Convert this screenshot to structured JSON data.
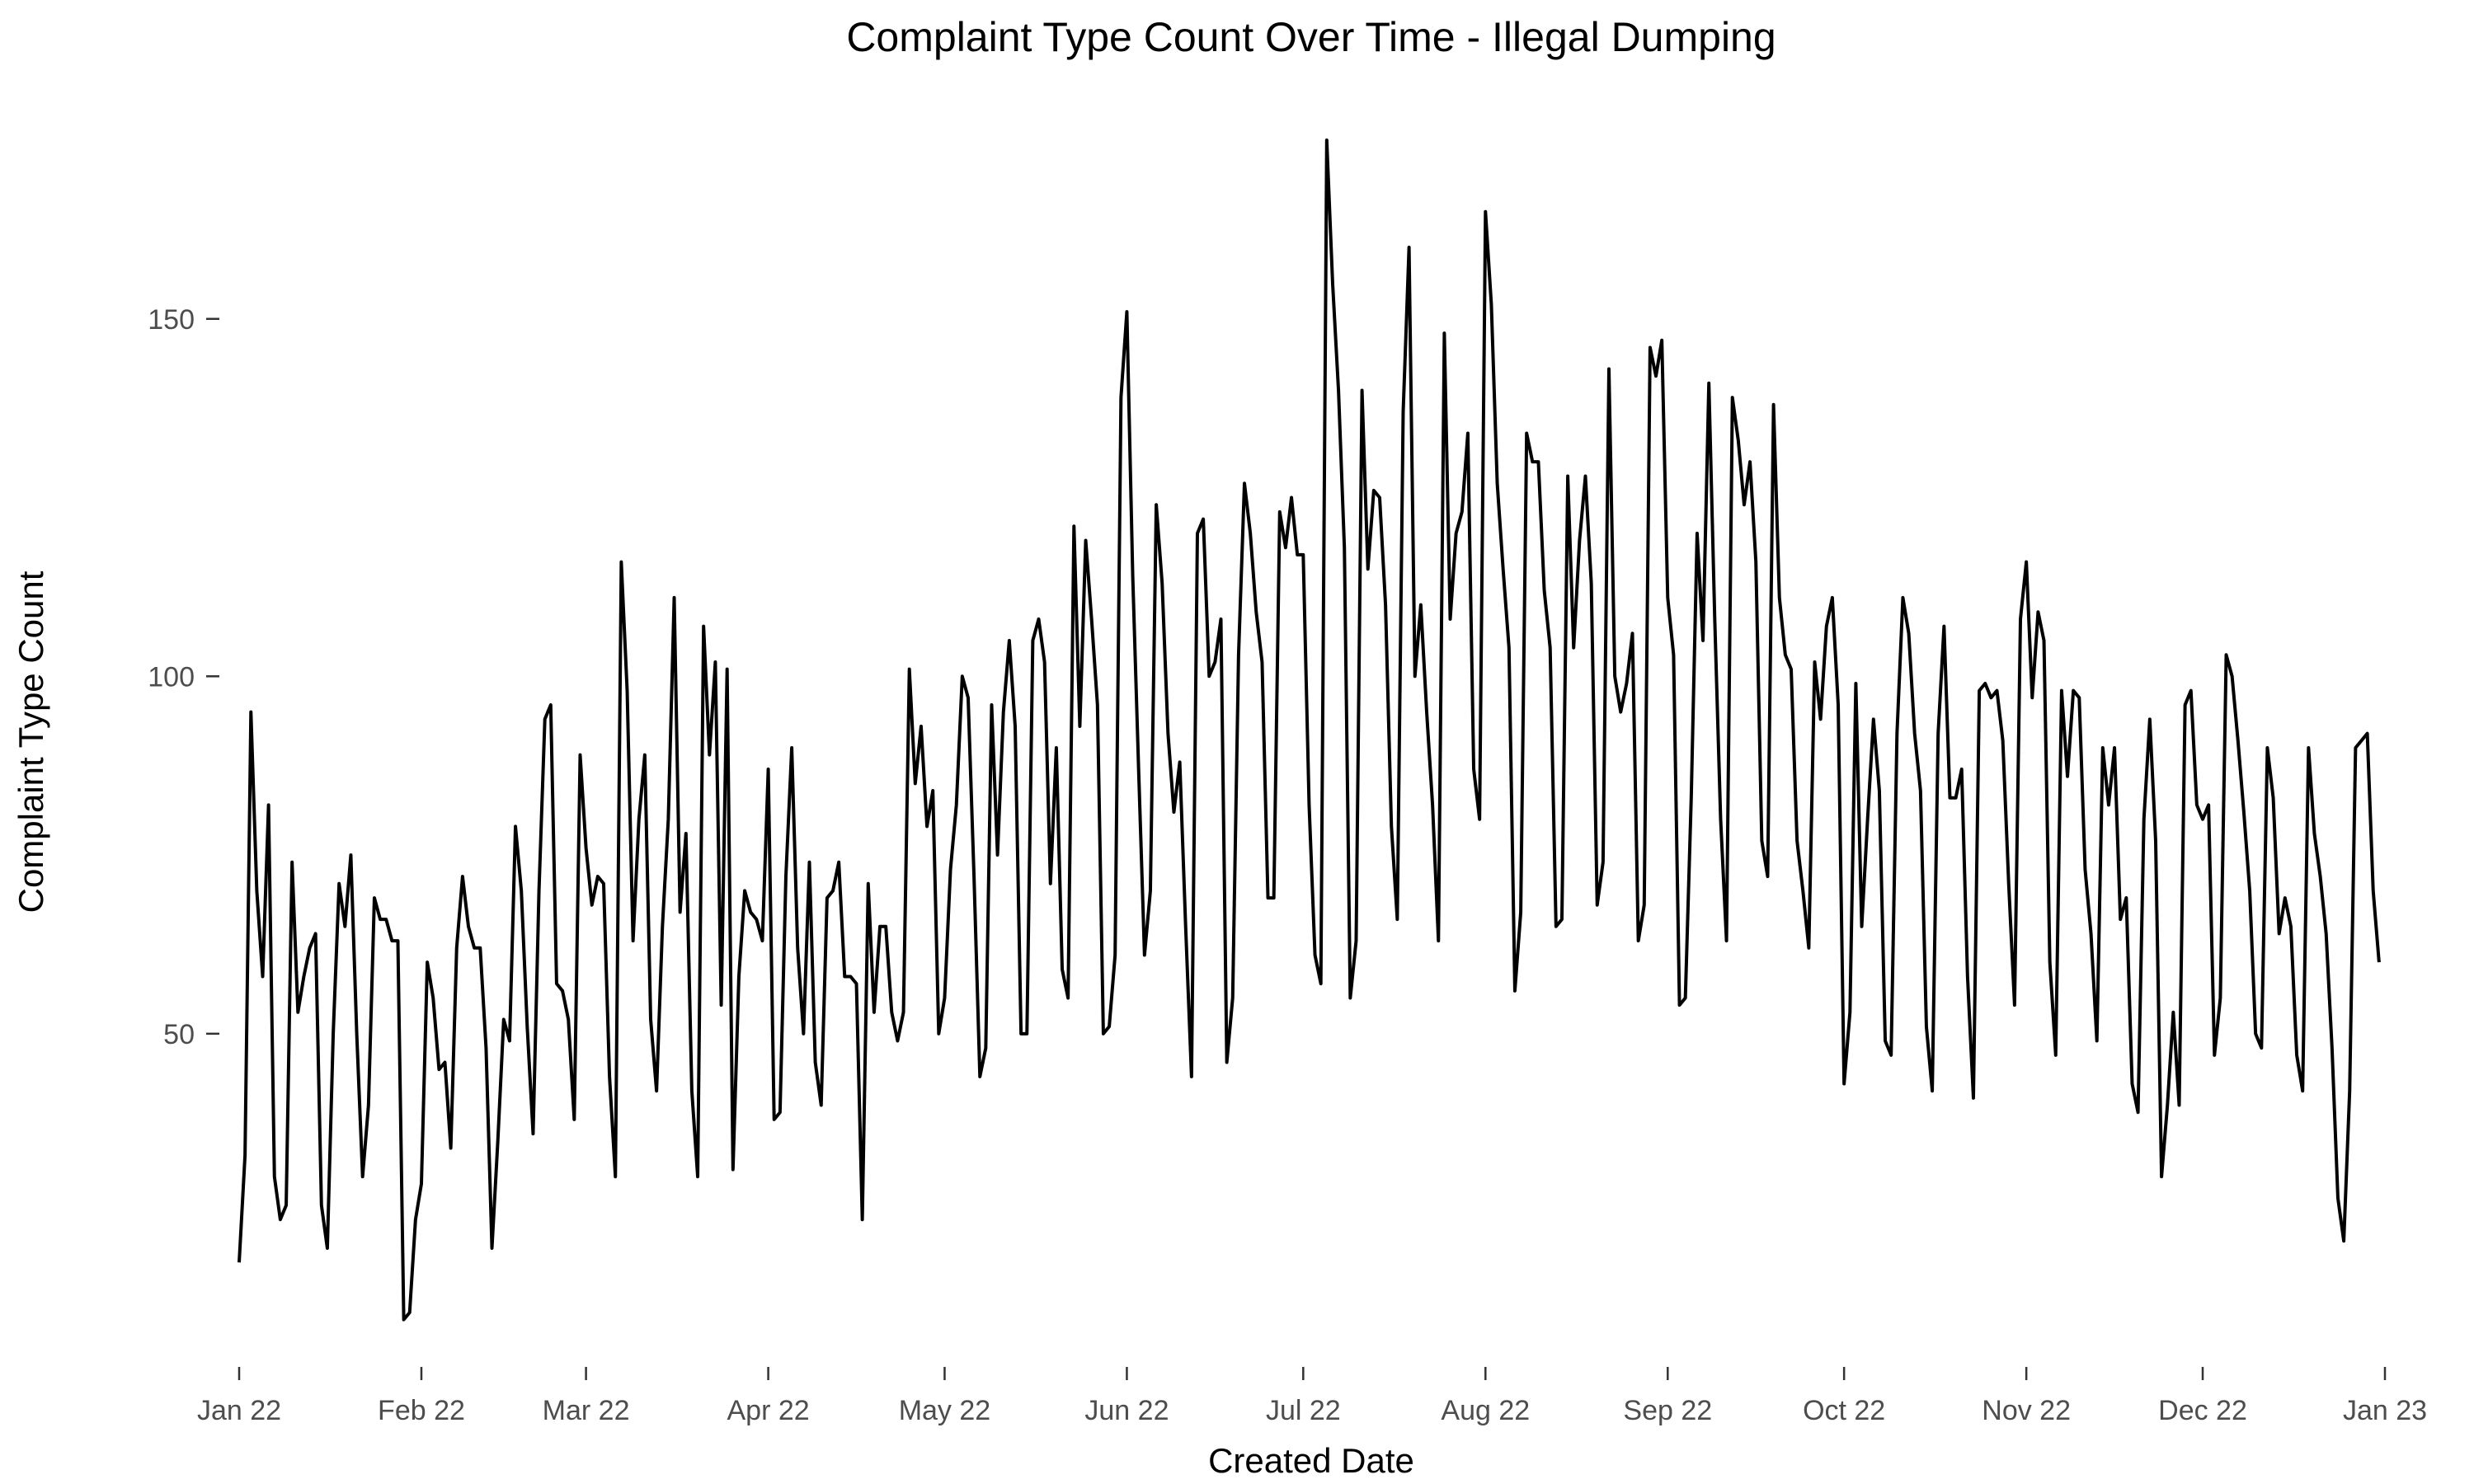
{
  "chart_data": {
    "type": "line",
    "title": "Complaint Type Count Over Time - Illegal Dumping",
    "xlabel": "Created Date",
    "ylabel": "Complaint Type Count",
    "x_range": [
      "2022-01-01",
      "2023-01-01"
    ],
    "ylim": [
      8,
      175
    ],
    "y_ticks": [
      50,
      100,
      150
    ],
    "x_ticks": [
      {
        "date": "2022-01-01",
        "label": "Jan 22"
      },
      {
        "date": "2022-02-01",
        "label": "Feb 22"
      },
      {
        "date": "2022-03-01",
        "label": "Mar 22"
      },
      {
        "date": "2022-04-01",
        "label": "Apr 22"
      },
      {
        "date": "2022-05-01",
        "label": "May 22"
      },
      {
        "date": "2022-06-01",
        "label": "Jun 22"
      },
      {
        "date": "2022-07-01",
        "label": "Jul 22"
      },
      {
        "date": "2022-08-01",
        "label": "Aug 22"
      },
      {
        "date": "2022-09-01",
        "label": "Sep 22"
      },
      {
        "date": "2022-10-01",
        "label": "Oct 22"
      },
      {
        "date": "2022-11-01",
        "label": "Nov 22"
      },
      {
        "date": "2022-12-01",
        "label": "Dec 22"
      },
      {
        "date": "2023-01-01",
        "label": "Jan 23"
      }
    ],
    "grid": false,
    "series": [
      {
        "start_date": "2022-01-01",
        "values": [
          18,
          33,
          95,
          70,
          58,
          82,
          30,
          24,
          26,
          74,
          53,
          58,
          62,
          64,
          26,
          20,
          50,
          71,
          65,
          75,
          50,
          30,
          40,
          69,
          66,
          66,
          63,
          63,
          10,
          11,
          24,
          29,
          60,
          55,
          45,
          46,
          34,
          62,
          72,
          65,
          62,
          62,
          48,
          20,
          35,
          52,
          49,
          79,
          70,
          51,
          36,
          70,
          94,
          96,
          57,
          56,
          52,
          38,
          89,
          76,
          68,
          72,
          71,
          44,
          30,
          116,
          98,
          63,
          80,
          89,
          52,
          42,
          65,
          80,
          111,
          67,
          78,
          42,
          30,
          107,
          89,
          102,
          54,
          101,
          31,
          58,
          70,
          67,
          66,
          63,
          87,
          38,
          39,
          72,
          90,
          62,
          50,
          74,
          46,
          40,
          69,
          70,
          74,
          58,
          58,
          57,
          24,
          71,
          53,
          65,
          65,
          53,
          49,
          53,
          101,
          85,
          93,
          79,
          84,
          50,
          55,
          73,
          82,
          100,
          97,
          72,
          44,
          48,
          96,
          75,
          95,
          105,
          93,
          50,
          50,
          105,
          108,
          102,
          71,
          90,
          59,
          55,
          121,
          93,
          119,
          108,
          96,
          50,
          51,
          61,
          139,
          151,
          114,
          87,
          61,
          70,
          124,
          113,
          92,
          81,
          88,
          65,
          44,
          120,
          122,
          100,
          102,
          108,
          46,
          55,
          103,
          127,
          120,
          109,
          102,
          69,
          69,
          123,
          118,
          125,
          117,
          117,
          82,
          61,
          57,
          175,
          155,
          140,
          118,
          55,
          63,
          140,
          115,
          126,
          125,
          110,
          79,
          66,
          137,
          160,
          100,
          110,
          95,
          82,
          63,
          148,
          108,
          120,
          123,
          134,
          87,
          80,
          165,
          152,
          127,
          115,
          104,
          56,
          67,
          134,
          130,
          130,
          112,
          104,
          65,
          66,
          128,
          104,
          119,
          128,
          113,
          68,
          74,
          143,
          100,
          95,
          99,
          106,
          63,
          68,
          146,
          142,
          147,
          111,
          103,
          54,
          55,
          83,
          120,
          105,
          141,
          108,
          80,
          63,
          139,
          133,
          124,
          130,
          116,
          77,
          72,
          138,
          111,
          103,
          101,
          77,
          70,
          62,
          102,
          94,
          107,
          111,
          96,
          43,
          53,
          99,
          65,
          80,
          94,
          84,
          49,
          47,
          92,
          111,
          106,
          92,
          84,
          51,
          42,
          92,
          107,
          83,
          83,
          87,
          58,
          41,
          98,
          99,
          97,
          98,
          91,
          71,
          54,
          108,
          116,
          97,
          109,
          105,
          60,
          47,
          98,
          86,
          98,
          97,
          73,
          64,
          49,
          90,
          82,
          90,
          66,
          69,
          43,
          39,
          80,
          94,
          77,
          30,
          40,
          53,
          40,
          96,
          98,
          82,
          80,
          82,
          47,
          55,
          103,
          100,
          91,
          81,
          70,
          50,
          48,
          90,
          83,
          64,
          69,
          65,
          47,
          42,
          90,
          78,
          72,
          64,
          48,
          27,
          21,
          42,
          90,
          91,
          92,
          70,
          60
        ]
      }
    ]
  }
}
